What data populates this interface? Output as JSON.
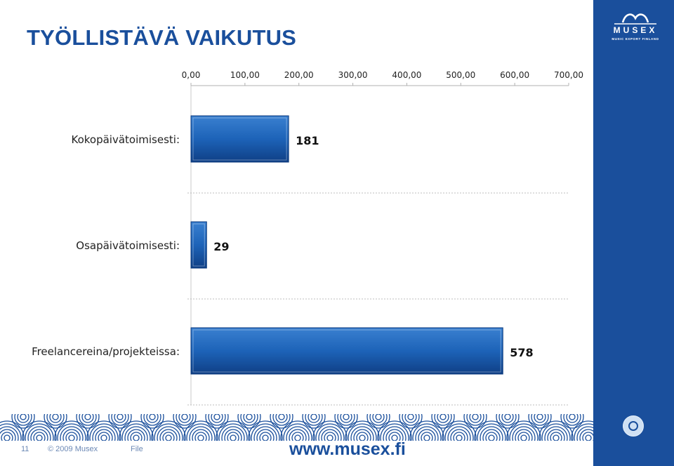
{
  "slide": {
    "title": "TYÖLLISTÄVÄ VAIKUTUS",
    "brand": {
      "name": "MUSEX",
      "tagline": "MUSIC EXPORT FINLAND"
    },
    "footer": {
      "page_number": "11",
      "copyright": "© 2009 Musex",
      "file_label": "File",
      "url": "www.musex.fi"
    },
    "colors": {
      "accent": "#1a4f9c",
      "bar": "#1d63b8",
      "bar_dark": "#0f3f85"
    }
  },
  "chart_data": {
    "type": "bar",
    "orientation": "horizontal",
    "categories": [
      "Kokopäivätoimisesti:",
      "Osapäivätoimisesti:",
      "Freelancereina/projekteissa:"
    ],
    "values": [
      181,
      29,
      578
    ],
    "value_labels": [
      "181",
      "29",
      "578"
    ],
    "xlim": [
      0,
      700
    ],
    "xticks": [
      "0,00",
      "100,00",
      "200,00",
      "300,00",
      "400,00",
      "500,00",
      "600,00",
      "700,00"
    ],
    "axis_position": "top",
    "grid": "dashed horizontal separators"
  }
}
